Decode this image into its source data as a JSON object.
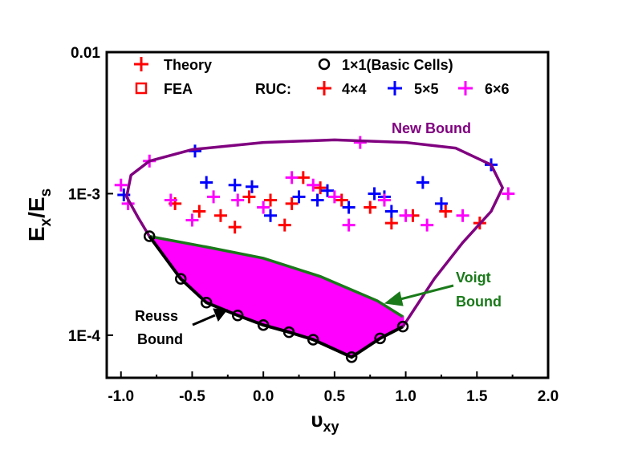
{
  "chart_data": {
    "type": "scatter",
    "xlabel_main": "υ",
    "xlabel_sub": "xy",
    "ylabel_main": "E",
    "ylabel_sub1": "x",
    "ylabel_sep": "/E",
    "ylabel_sub2": "s",
    "xlim": [
      -1.1,
      2.0
    ],
    "ylim": [
      5e-05,
      0.01
    ],
    "yscale": "log",
    "grid": false,
    "legend_placement": "top",
    "x_ticks": [
      {
        "value": -1.0,
        "label": "-1.0"
      },
      {
        "value": -0.5,
        "label": "-0.5"
      },
      {
        "value": 0.0,
        "label": "0.0"
      },
      {
        "value": 0.5,
        "label": "0.5"
      },
      {
        "value": 1.0,
        "label": "1.0"
      },
      {
        "value": 1.5,
        "label": "1.5"
      },
      {
        "value": 2.0,
        "label": "2.0"
      }
    ],
    "y_ticks": [
      {
        "value": 0.01,
        "label": "0.01"
      },
      {
        "value": 0.001,
        "label": "1E-3"
      },
      {
        "value": 0.0001,
        "label": "1E-4"
      }
    ],
    "legend": {
      "theory": "Theory",
      "fea": "FEA",
      "basic": "1×1(Basic Cells)",
      "ruc_prefix": "RUC:",
      "ruc4": "4×4",
      "ruc5": "5×5",
      "ruc6": "6×6"
    },
    "annotations": {
      "new_bound": "New Bound",
      "voigt_line1": "Voigt",
      "voigt_line2": "Bound",
      "reuss_line1": "Reuss",
      "reuss_line2": "Bound"
    },
    "colors": {
      "theory": "#ff0000",
      "fea": "#ff0000",
      "basic": "#000000",
      "ruc4": "#ff0000",
      "ruc5": "#0000ff",
      "ruc6": "#ff00ff",
      "new_bound": "#800080",
      "voigt_bound": "#1a7a1a",
      "reuss_bound": "#000000",
      "fill": "#ff00ff"
    },
    "series": [
      {
        "name": "1×1(Basic Cells)",
        "points": [
          [
            -0.8,
            0.0005
          ],
          [
            -0.58,
            0.00025
          ],
          [
            -0.4,
            0.00017
          ],
          [
            -0.18,
            0.000138
          ],
          [
            0.0,
            0.000118
          ],
          [
            0.18,
            0.000105
          ],
          [
            0.35,
            9.3e-05
          ],
          [
            0.62,
            7e-05
          ],
          [
            0.82,
            9.5e-05
          ],
          [
            0.98,
            0.000115
          ]
        ]
      },
      {
        "name": "New Bound",
        "points": [
          [
            -0.8,
            0.0005
          ],
          [
            -0.88,
            0.00068
          ],
          [
            -0.96,
            0.00095
          ],
          [
            -0.93,
            0.00135
          ],
          [
            -0.8,
            0.0017
          ],
          [
            -0.5,
            0.00205
          ],
          [
            0.0,
            0.0023
          ],
          [
            0.5,
            0.0024
          ],
          [
            1.0,
            0.0023
          ],
          [
            1.35,
            0.0021
          ],
          [
            1.6,
            0.0016
          ],
          [
            1.68,
            0.0011
          ],
          [
            1.6,
            0.00075
          ],
          [
            1.4,
            0.00045
          ],
          [
            1.2,
            0.00025
          ],
          [
            0.98,
            0.000115
          ]
        ]
      },
      {
        "name": "Voigt Bound",
        "points": [
          [
            -0.8,
            0.0005
          ],
          [
            -0.4,
            0.00042
          ],
          [
            0.0,
            0.00035
          ],
          [
            0.4,
            0.00026
          ],
          [
            0.8,
            0.000175
          ],
          [
            0.98,
            0.000135
          ]
        ]
      },
      {
        "name": "Reuss Bound",
        "points": [
          [
            -0.8,
            0.0005
          ],
          [
            -0.58,
            0.00025
          ],
          [
            -0.4,
            0.00017
          ],
          [
            -0.18,
            0.000138
          ],
          [
            0.0,
            0.000118
          ],
          [
            0.18,
            0.000105
          ],
          [
            0.35,
            9.3e-05
          ],
          [
            0.62,
            7e-05
          ],
          [
            0.82,
            9.5e-05
          ],
          [
            0.98,
            0.000115
          ]
        ]
      },
      {
        "name": "4×4",
        "points": [
          [
            -0.62,
            0.00085
          ],
          [
            -0.45,
            0.00075
          ],
          [
            -0.3,
            0.0007
          ],
          [
            -0.1,
            0.00095
          ],
          [
            0.05,
            0.0009
          ],
          [
            0.2,
            0.00085
          ],
          [
            0.28,
            0.0013
          ],
          [
            0.4,
            0.0011
          ],
          [
            0.55,
            0.0009
          ],
          [
            0.75,
            0.0008
          ],
          [
            0.9,
            0.00062
          ],
          [
            1.05,
            0.0007
          ],
          [
            1.28,
            0.00075
          ],
          [
            1.52,
            0.00062
          ],
          [
            0.15,
            0.0006
          ],
          [
            -0.2,
            0.00058
          ]
        ]
      },
      {
        "name": "5×5",
        "points": [
          [
            -0.98,
            0.00098
          ],
          [
            -0.48,
            0.002
          ],
          [
            -0.4,
            0.0012
          ],
          [
            -0.2,
            0.00115
          ],
          [
            -0.08,
            0.00112
          ],
          [
            0.05,
            0.0007
          ],
          [
            0.25,
            0.00095
          ],
          [
            0.38,
            0.0009
          ],
          [
            0.45,
            0.00105
          ],
          [
            0.6,
            0.0008
          ],
          [
            0.78,
            0.001
          ],
          [
            0.85,
            0.00095
          ],
          [
            1.12,
            0.0012
          ],
          [
            1.25,
            0.00085
          ],
          [
            1.6,
            0.0016
          ],
          [
            0.9,
            0.00075
          ]
        ]
      },
      {
        "name": "6×6",
        "points": [
          [
            -1.0,
            0.00115
          ],
          [
            -0.95,
            0.00085
          ],
          [
            -0.8,
            0.0017
          ],
          [
            -0.65,
            0.0009
          ],
          [
            -0.35,
            0.00095
          ],
          [
            -0.18,
            0.0009
          ],
          [
            0.0,
            0.0008
          ],
          [
            0.2,
            0.0013
          ],
          [
            0.35,
            0.00115
          ],
          [
            0.5,
            0.00095
          ],
          [
            0.68,
            0.0023
          ],
          [
            0.85,
            0.0009
          ],
          [
            1.0,
            0.0007
          ],
          [
            1.15,
            0.0006
          ],
          [
            1.4,
            0.0007
          ],
          [
            1.72,
            0.001
          ],
          [
            -0.5,
            0.00065
          ],
          [
            0.6,
            0.0006
          ]
        ]
      }
    ]
  }
}
